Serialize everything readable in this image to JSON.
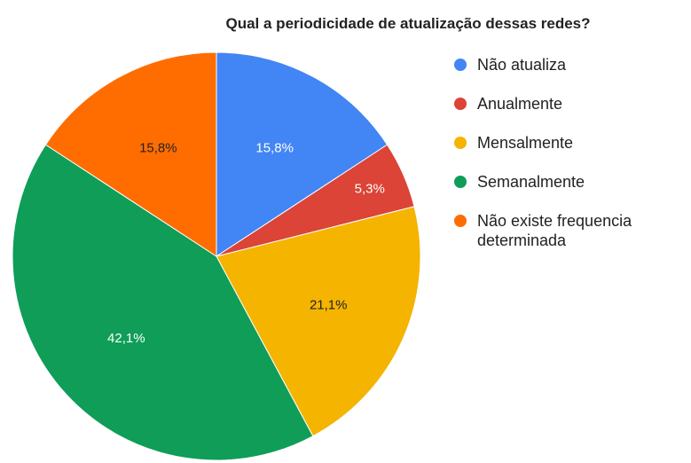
{
  "chart_data": {
    "type": "pie",
    "title": "Qual a periodicidade de atualização dessas redes?",
    "categories": [
      "Não atualiza",
      "Anualmente",
      "Mensalmente",
      "Semanalmente",
      "Não existe frequencia determinada"
    ],
    "values": [
      15.8,
      5.3,
      21.1,
      42.1,
      15.8
    ],
    "value_labels": [
      "15,8%",
      "5,3%",
      "21,1%",
      "42,1%",
      "15,8%"
    ],
    "colors": [
      "#4285f4",
      "#db4437",
      "#f4b400",
      "#0f9d58",
      "#ff6d01"
    ],
    "legend": "right"
  }
}
